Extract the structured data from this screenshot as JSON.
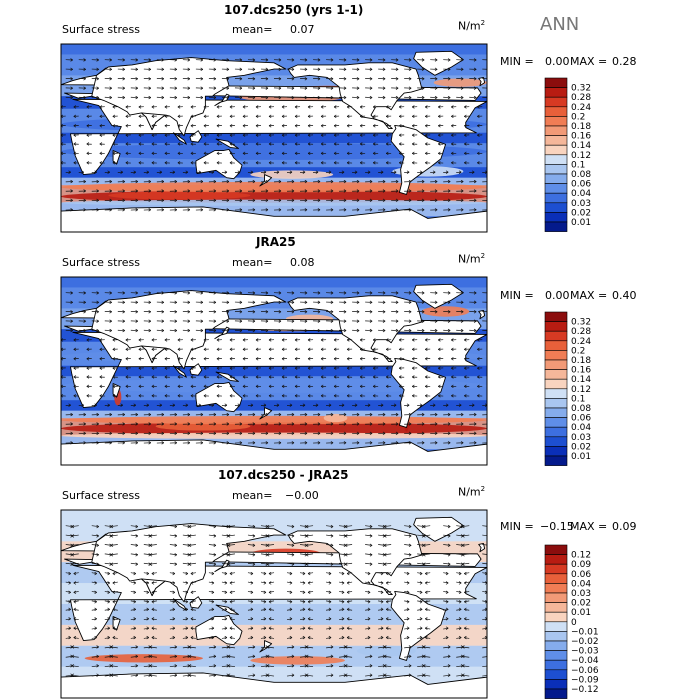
{
  "season": "ANN",
  "units": "N/m",
  "units_sup": "2",
  "panels": [
    {
      "title": "107.dcs250 (yrs 1-1)",
      "field": "Surface stress",
      "mean_label": "mean=",
      "mean_value": "0.07",
      "min_label": "MIN =",
      "min_value": "0.00",
      "max_label": "MAX =",
      "max_value": "0.28"
    },
    {
      "title": "JRA25",
      "field": "Surface stress",
      "mean_label": "mean=",
      "mean_value": "0.08",
      "min_label": "MIN =",
      "min_value": "0.00",
      "max_label": "MAX =",
      "max_value": "0.40"
    },
    {
      "title": "107.dcs250 - JRA25",
      "field": "Surface stress",
      "mean_label": "mean=",
      "mean_value": "−0.00",
      "min_label": "MIN =",
      "min_value": "−0.15",
      "max_label": "MAX =",
      "max_value": "0.09"
    }
  ],
  "chart_data": [
    {
      "type": "heatmap",
      "title": "107.dcs250 (yrs 1-1)",
      "variable": "Surface stress",
      "units": "N/m2",
      "mean": 0.07,
      "min": 0.0,
      "max": 0.28,
      "colorbar_levels": [
        "0.32",
        "0.28",
        "0.24",
        "0.2",
        "0.18",
        "0.16",
        "0.14",
        "0.12",
        "0.1",
        "0.08",
        "0.06",
        "0.04",
        "0.03",
        "0.02",
        "0.01"
      ],
      "colorbar_colors": [
        "#8b0d0d",
        "#b81c12",
        "#d73a23",
        "#e8603a",
        "#f07d55",
        "#f29a77",
        "#f5b79a",
        "#f9d4bf",
        "#cfe0f5",
        "#a9c6f0",
        "#85acec",
        "#5f8ee8",
        "#3d6fe0",
        "#1d4fd1",
        "#0a2fb8",
        "#041a8c"
      ]
    },
    {
      "type": "heatmap",
      "title": "JRA25",
      "variable": "Surface stress",
      "units": "N/m2",
      "mean": 0.08,
      "min": 0.0,
      "max": 0.4,
      "colorbar_levels": [
        "0.32",
        "0.28",
        "0.24",
        "0.2",
        "0.18",
        "0.16",
        "0.14",
        "0.12",
        "0.1",
        "0.08",
        "0.06",
        "0.04",
        "0.03",
        "0.02",
        "0.01"
      ],
      "colorbar_colors": [
        "#8b0d0d",
        "#b81c12",
        "#d73a23",
        "#e8603a",
        "#f07d55",
        "#f29a77",
        "#f5b79a",
        "#f9d4bf",
        "#cfe0f5",
        "#a9c6f0",
        "#85acec",
        "#5f8ee8",
        "#3d6fe0",
        "#1d4fd1",
        "#0a2fb8",
        "#041a8c"
      ]
    },
    {
      "type": "heatmap",
      "title": "107.dcs250 - JRA25",
      "variable": "Surface stress",
      "units": "N/m2",
      "mean": -0.0,
      "min": -0.15,
      "max": 0.09,
      "colorbar_levels": [
        "0.12",
        "0.09",
        "0.06",
        "0.04",
        "0.03",
        "0.02",
        "0.01",
        "0",
        "−0.01",
        "−0.02",
        "−0.03",
        "−0.04",
        "−0.06",
        "−0.09",
        "−0.12"
      ],
      "colorbar_colors": [
        "#8b0d0d",
        "#b81c12",
        "#d73a23",
        "#e8603a",
        "#f07d55",
        "#f29a77",
        "#f5b79a",
        "#f9d4bf",
        "#cfe0f5",
        "#a9c6f0",
        "#85acec",
        "#5f8ee8",
        "#3d6fe0",
        "#1d4fd1",
        "#0a2fb8",
        "#041a8c"
      ]
    }
  ]
}
